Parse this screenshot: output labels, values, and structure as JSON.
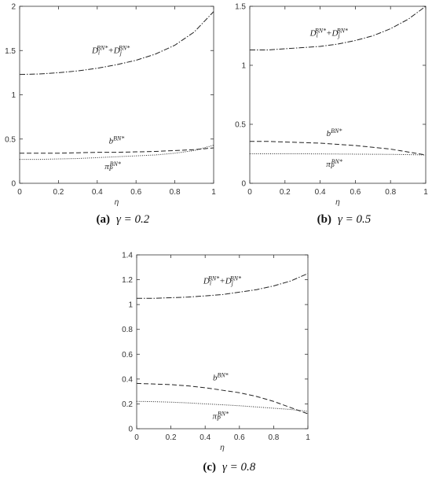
{
  "chart_data": [
    {
      "type": "line",
      "tag": "(a)",
      "caption": "γ = 0.2",
      "x_label": "η",
      "x": [
        0,
        0.1,
        0.2,
        0.3,
        0.4,
        0.5,
        0.6,
        0.7,
        0.8,
        0.9,
        1
      ],
      "xlim": [
        0,
        1
      ],
      "xticks": [
        0,
        0.2,
        0.4,
        0.6,
        0.8,
        1
      ],
      "ylim": [
        0,
        2
      ],
      "yticks": [
        0,
        0.5,
        1,
        1.5,
        2
      ],
      "series": [
        {
          "label": [
            [
              "D",
              ""
            ],
            [
              "i",
              "sub"
            ],
            [
              "BN*",
              "sup"
            ],
            [
              "+",
              ""
            ],
            [
              "D",
              ""
            ],
            [
              "j",
              "sub"
            ],
            [
              "BN*",
              "sup"
            ]
          ],
          "color": "#222",
          "dash": "dashdot",
          "values": [
            1.23,
            1.235,
            1.25,
            1.27,
            1.3,
            1.34,
            1.39,
            1.46,
            1.56,
            1.71,
            1.94
          ]
        },
        {
          "label": [
            [
              "b",
              ""
            ],
            [
              "BN*",
              "sup"
            ]
          ],
          "color": "#222",
          "dash": "dashed",
          "values": [
            0.34,
            0.34,
            0.34,
            0.345,
            0.35,
            0.35,
            0.355,
            0.36,
            0.37,
            0.38,
            0.4
          ]
        },
        {
          "label": [
            [
              "π",
              ""
            ],
            [
              "P",
              "sub"
            ],
            [
              "BN*",
              "sup"
            ]
          ],
          "color": "#222",
          "dash": "dotted",
          "values": [
            0.27,
            0.27,
            0.275,
            0.28,
            0.29,
            0.3,
            0.31,
            0.32,
            0.34,
            0.37,
            0.43
          ]
        }
      ]
    },
    {
      "type": "line",
      "tag": "(b)",
      "caption": "γ = 0.5",
      "x_label": "η",
      "x": [
        0,
        0.1,
        0.2,
        0.3,
        0.4,
        0.5,
        0.6,
        0.7,
        0.8,
        0.9,
        1
      ],
      "xlim": [
        0,
        1
      ],
      "xticks": [
        0,
        0.2,
        0.4,
        0.6,
        0.8,
        1
      ],
      "ylim": [
        0,
        1.5
      ],
      "yticks": [
        0,
        0.5,
        1,
        1.5
      ],
      "series": [
        {
          "label": [
            [
              "D",
              ""
            ],
            [
              "i",
              "sub"
            ],
            [
              "BN*",
              "sup"
            ],
            [
              "+",
              ""
            ],
            [
              "D",
              ""
            ],
            [
              "j",
              "sub"
            ],
            [
              "BN*",
              "sup"
            ]
          ],
          "color": "#222",
          "dash": "dashdot",
          "values": [
            1.13,
            1.13,
            1.14,
            1.15,
            1.16,
            1.18,
            1.21,
            1.25,
            1.31,
            1.39,
            1.5
          ]
        },
        {
          "label": [
            [
              "b",
              ""
            ],
            [
              "BN*",
              "sup"
            ]
          ],
          "color": "#222",
          "dash": "dashed",
          "values": [
            0.355,
            0.355,
            0.35,
            0.345,
            0.34,
            0.33,
            0.32,
            0.305,
            0.29,
            0.265,
            0.24
          ]
        },
        {
          "label": [
            [
              "π",
              ""
            ],
            [
              "P",
              "sub"
            ],
            [
              "BN*",
              "sup"
            ]
          ],
          "color": "#222",
          "dash": "dotted",
          "values": [
            0.25,
            0.25,
            0.25,
            0.25,
            0.249,
            0.248,
            0.247,
            0.246,
            0.245,
            0.243,
            0.24
          ]
        }
      ]
    },
    {
      "type": "line",
      "tag": "(c)",
      "caption": "γ = 0.8",
      "x_label": "η",
      "x": [
        0,
        0.1,
        0.2,
        0.3,
        0.4,
        0.5,
        0.6,
        0.7,
        0.8,
        0.9,
        1
      ],
      "xlim": [
        0,
        1
      ],
      "xticks": [
        0,
        0.2,
        0.4,
        0.6,
        0.8,
        1
      ],
      "ylim": [
        0,
        1.4
      ],
      "yticks": [
        0,
        0.2,
        0.4,
        0.6,
        0.8,
        1,
        1.2,
        1.4
      ],
      "series": [
        {
          "label": [
            [
              "D",
              ""
            ],
            [
              "i",
              "sub"
            ],
            [
              "BN*",
              "sup"
            ],
            [
              "+",
              ""
            ],
            [
              "D",
              ""
            ],
            [
              "j",
              "sub"
            ],
            [
              "BN*",
              "sup"
            ]
          ],
          "color": "#222",
          "dash": "dashdot",
          "values": [
            1.05,
            1.05,
            1.055,
            1.06,
            1.07,
            1.08,
            1.1,
            1.12,
            1.15,
            1.19,
            1.25
          ]
        },
        {
          "label": [
            [
              "b",
              ""
            ],
            [
              "BN*",
              "sup"
            ]
          ],
          "color": "#222",
          "dash": "dashed",
          "values": [
            0.365,
            0.36,
            0.355,
            0.345,
            0.33,
            0.31,
            0.29,
            0.26,
            0.22,
            0.17,
            0.12
          ]
        },
        {
          "label": [
            [
              "π",
              ""
            ],
            [
              "P",
              "sub"
            ],
            [
              "BN*",
              "sup"
            ]
          ],
          "color": "#222",
          "dash": "dotted",
          "values": [
            0.22,
            0.218,
            0.214,
            0.208,
            0.2,
            0.193,
            0.185,
            0.175,
            0.165,
            0.155,
            0.14
          ]
        }
      ]
    }
  ]
}
